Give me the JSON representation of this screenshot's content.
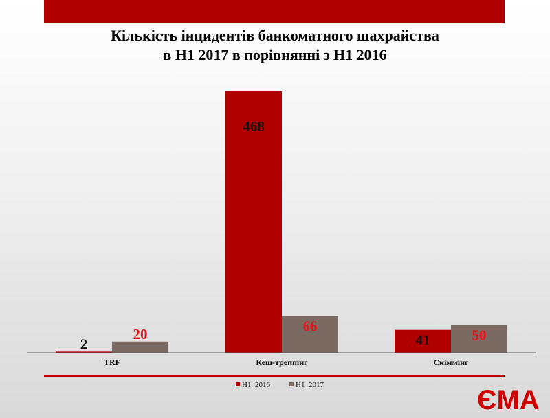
{
  "slide": {
    "title_line1": "Кількість інцидентів банкоматного шахрайства",
    "title_line2": "в H1 2017  в порівнянні з  H1 2016",
    "colors": {
      "banner": "#b00000",
      "accent": "#c00000"
    }
  },
  "chart_data": {
    "type": "bar",
    "categories": [
      "TRF",
      "Кеш-треппінг",
      "Скіммінг"
    ],
    "series": [
      {
        "name": "H1_2016",
        "values": [
          2,
          468,
          41
        ],
        "color": "#b00000",
        "label_color": "#111111"
      },
      {
        "name": "H1_2017",
        "values": [
          20,
          66,
          50
        ],
        "color": "#7a6a62",
        "label_color": "#e8131b"
      }
    ],
    "ylim": [
      0,
      468
    ],
    "grid": false,
    "legend": "bottom-center"
  },
  "logo": {
    "text": "ЄМА",
    "icon": "ema-logo-icon"
  }
}
